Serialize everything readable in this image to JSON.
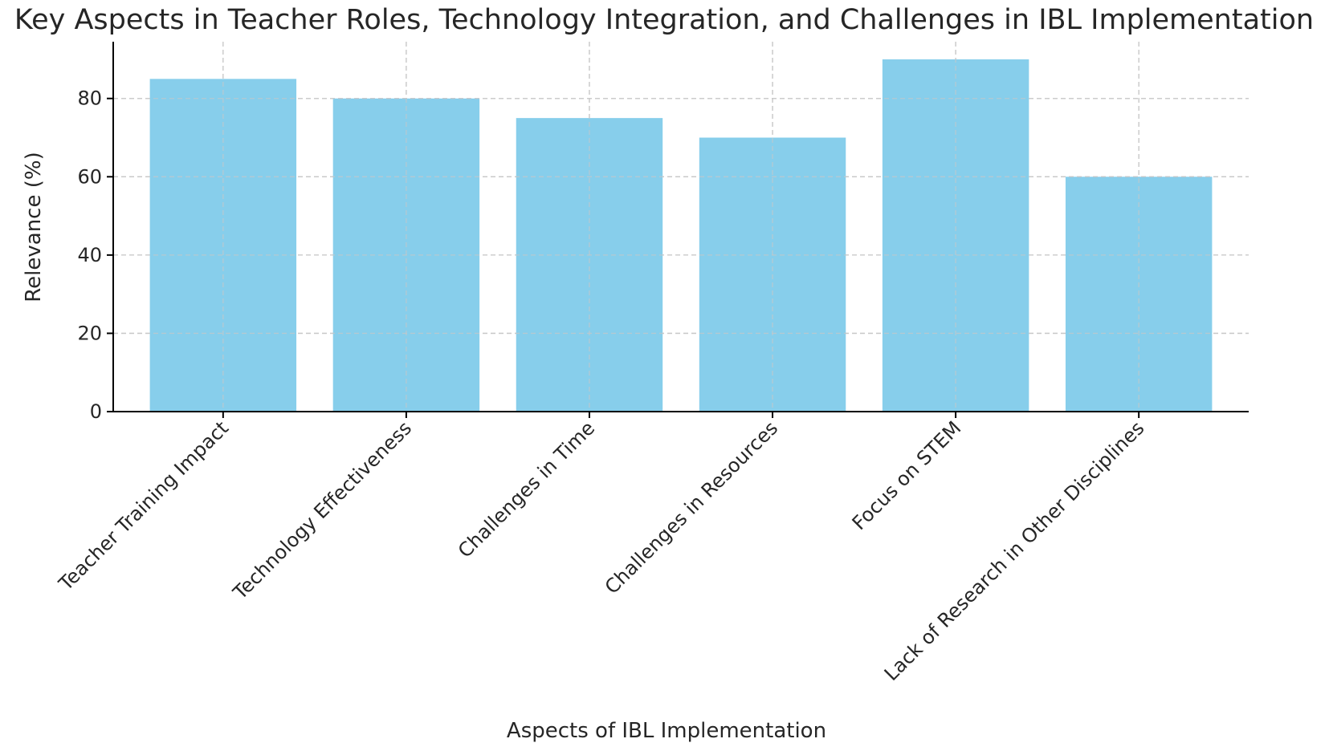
{
  "chart_data": {
    "type": "bar",
    "title": "Key Aspects in Teacher Roles, Technology Integration, and Challenges in IBL Implementation",
    "xlabel": "Aspects of IBL Implementation",
    "ylabel": "Relevance (%)",
    "categories": [
      "Teacher Training Impact",
      "Technology Effectiveness",
      "Challenges in Time",
      "Challenges in Resources",
      "Focus on STEM",
      "Lack of Research in Other Disciplines"
    ],
    "values": [
      85,
      80,
      75,
      70,
      90,
      60
    ],
    "ylim": [
      0,
      94.5
    ],
    "yticks": [
      0,
      20,
      40,
      60,
      80
    ],
    "ytick_labels": [
      "0",
      "20",
      "40",
      "60",
      "80"
    ],
    "grid": true,
    "bar_color": "#87ceeb"
  }
}
